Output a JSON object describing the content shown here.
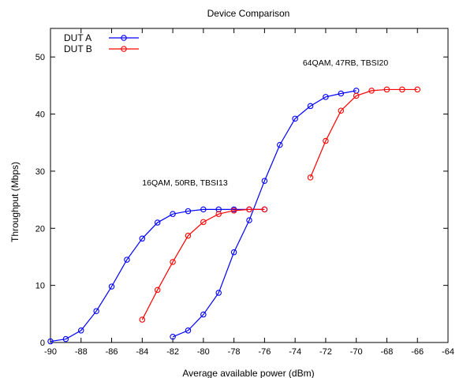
{
  "chart_data": {
    "type": "line",
    "title": "Device Comparison",
    "xlabel": "Average available power (dBm)",
    "ylabel": "Throughput (Mbps)",
    "xlim": [
      -90,
      -64
    ],
    "ylim": [
      0,
      55
    ],
    "xticks": [
      -90,
      -88,
      -86,
      -84,
      -82,
      -80,
      -78,
      -76,
      -74,
      -72,
      -70,
      -68,
      -66,
      -64
    ],
    "yticks": [
      0,
      10,
      20,
      30,
      40,
      50
    ],
    "grid": false,
    "legend_position": "top-left",
    "series": [
      {
        "name": "DUT A",
        "color": "#0000ff",
        "marker": "circle",
        "segments": [
          {
            "x": [
              -90,
              -89,
              -88,
              -87,
              -86,
              -85,
              -84,
              -83,
              -82,
              -81,
              -80,
              -79,
              -78,
              -77,
              -76
            ],
            "y": [
              0.2,
              0.6,
              2.1,
              5.5,
              9.8,
              14.5,
              18.2,
              21.0,
              22.5,
              23.0,
              23.3,
              23.3,
              23.3,
              23.3,
              23.3
            ]
          },
          {
            "x": [
              -82,
              -81,
              -80,
              -79,
              -78,
              -77,
              -76,
              -75,
              -74,
              -73,
              -72,
              -71,
              -70
            ],
            "y": [
              1.0,
              2.1,
              4.9,
              8.7,
              15.8,
              21.4,
              28.3,
              34.6,
              39.2,
              41.4,
              43.0,
              43.6,
              44.1
            ]
          }
        ]
      },
      {
        "name": "DUT B",
        "color": "#ff0000",
        "marker": "circle",
        "segments": [
          {
            "x": [
              -84,
              -83,
              -82,
              -81,
              -80,
              -79,
              -78,
              -77,
              -76
            ],
            "y": [
              4.0,
              9.2,
              14.1,
              18.7,
              21.1,
              22.5,
              23.1,
              23.3,
              23.3
            ]
          },
          {
            "x": [
              -73,
              -72,
              -71,
              -70,
              -69,
              -68,
              -67,
              -66
            ],
            "y": [
              28.9,
              35.3,
              40.6,
              43.2,
              44.1,
              44.3,
              44.3,
              44.3
            ]
          }
        ]
      }
    ],
    "annotations": [
      {
        "text": "16QAM, 50RB, TBSI13",
        "x": -84.0,
        "y": 27.5
      },
      {
        "text": "64QAM, 47RB, TBSI20",
        "x": -73.5,
        "y": 48.5
      }
    ]
  }
}
